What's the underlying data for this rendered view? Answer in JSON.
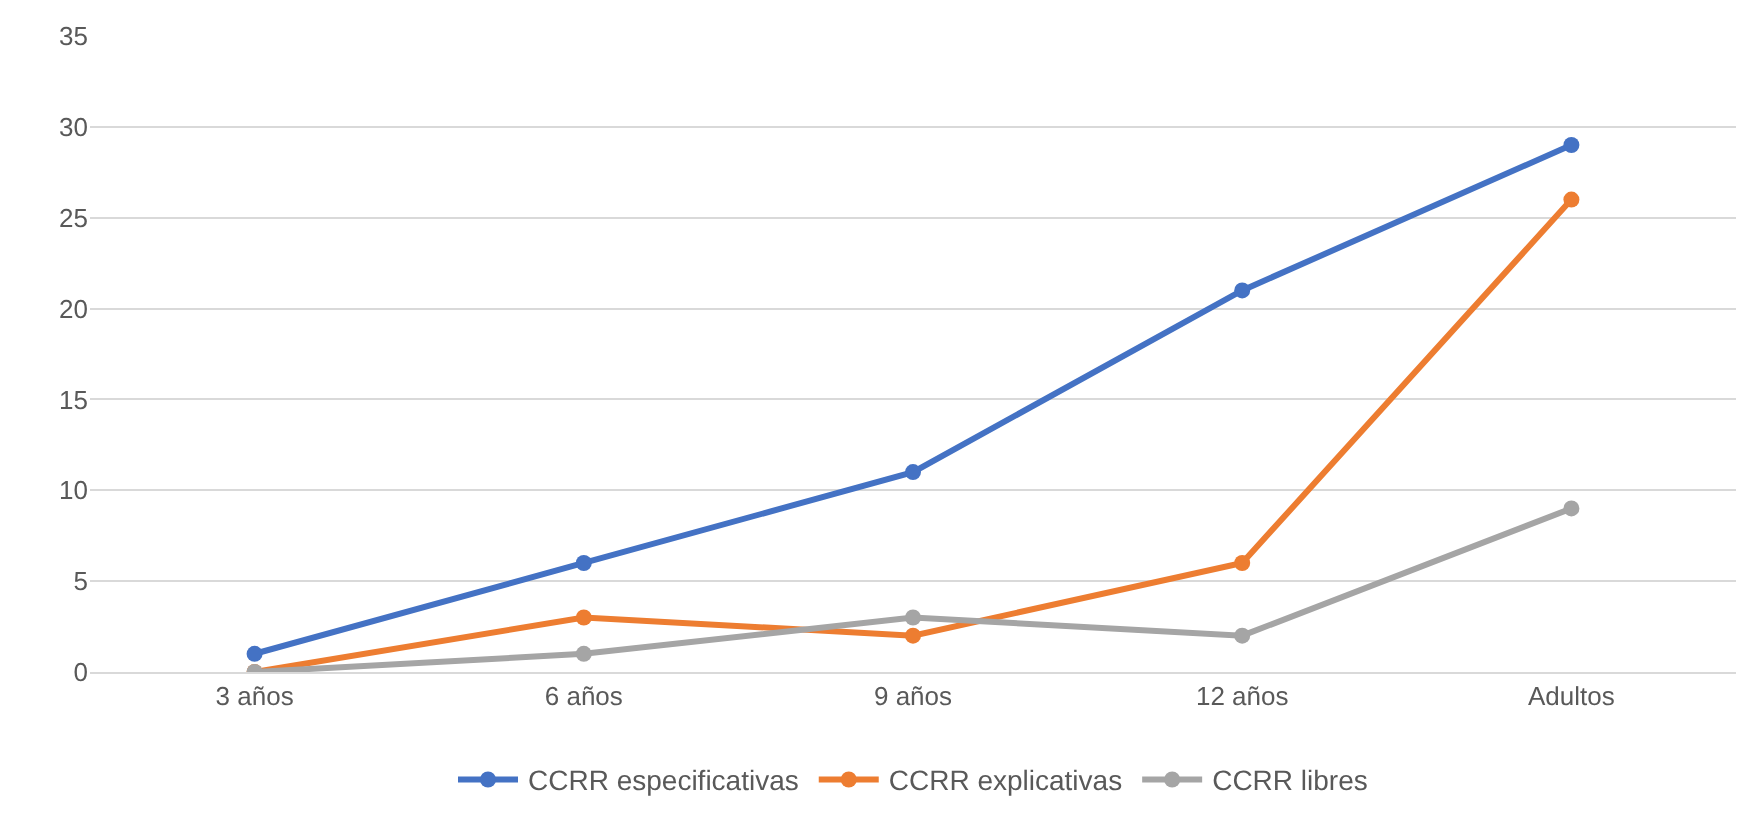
{
  "chart_data": {
    "type": "line",
    "categories": [
      "3 años",
      "6 años",
      "9 años",
      "12 años",
      "Adultos"
    ],
    "series": [
      {
        "name": "CCRR especificativas",
        "color": "#4472c4",
        "values": [
          1,
          6,
          11,
          21,
          29
        ]
      },
      {
        "name": "CCRR explicativas",
        "color": "#ed7d31",
        "values": [
          0,
          3,
          2,
          6,
          26
        ]
      },
      {
        "name": "CCRR libres",
        "color": "#a5a5a5",
        "values": [
          0,
          1,
          3,
          2,
          9
        ]
      }
    ],
    "ylim": [
      0,
      35
    ],
    "yticks": [
      0,
      5,
      10,
      15,
      20,
      25,
      30,
      35
    ],
    "grid": "y",
    "legend": "bottom",
    "marker": "circle",
    "line_style": "solid"
  }
}
